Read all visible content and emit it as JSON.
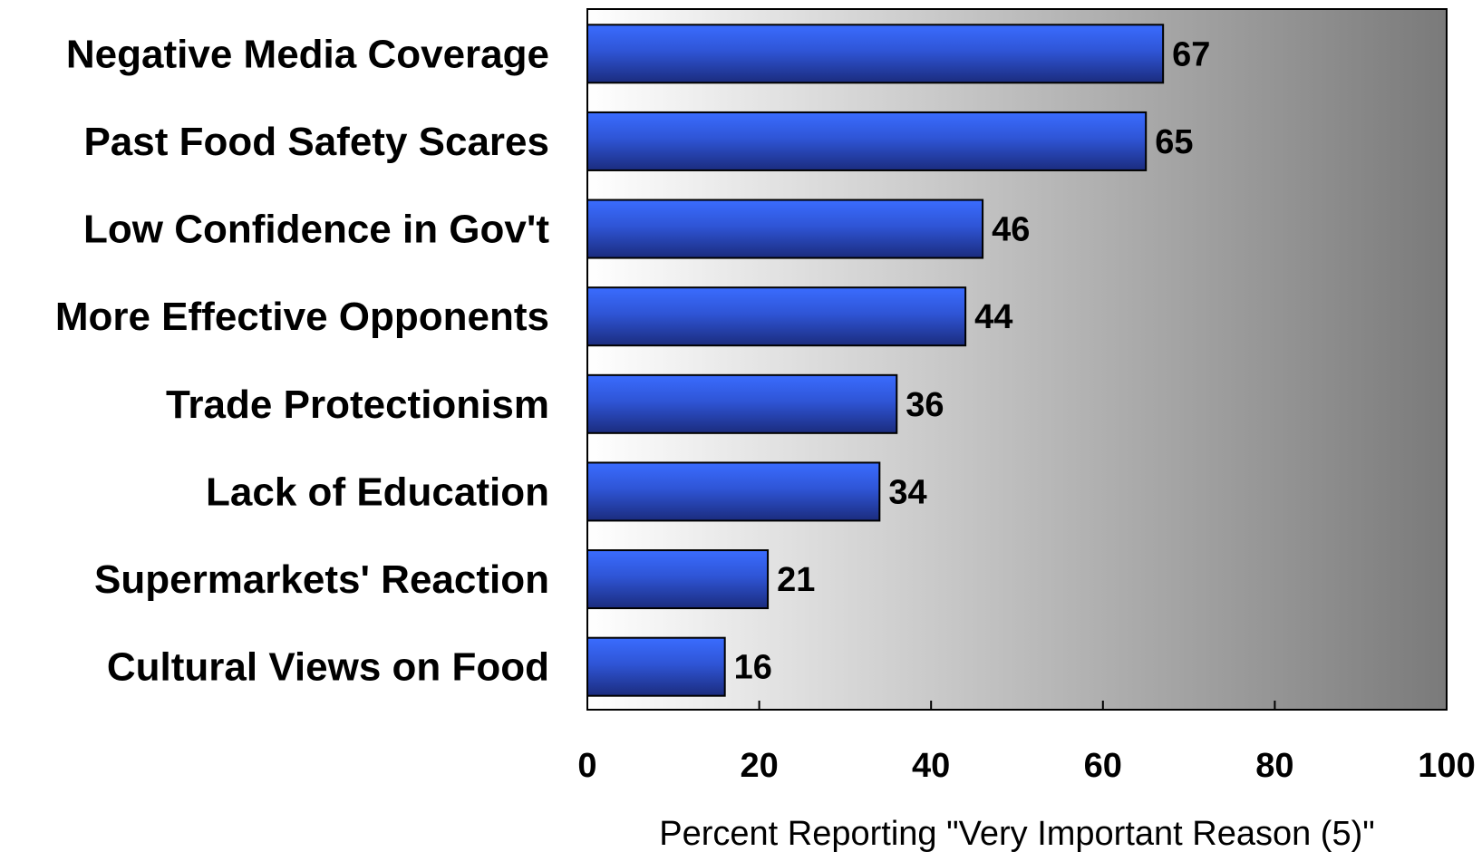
{
  "chart_data": {
    "type": "bar",
    "orientation": "horizontal",
    "categories": [
      "Negative Media Coverage",
      "Past Food Safety Scares",
      "Low Confidence in Gov't",
      "More Effective Opponents",
      "Trade Protectionism",
      "Lack of Education",
      "Supermarkets' Reaction",
      "Cultural Views on Food"
    ],
    "values": [
      67,
      65,
      46,
      44,
      36,
      34,
      21,
      16
    ],
    "xlabel": "Percent Reporting \"Very Important Reason (5)\"",
    "ylabel": "",
    "title": "",
    "xlim": [
      0,
      100
    ],
    "xticks": [
      0,
      20,
      40,
      60,
      80,
      100
    ],
    "tick_labels": [
      "0",
      "20",
      "40",
      "60",
      "80",
      "100"
    ],
    "grid": false,
    "data_labels": true,
    "colors": {
      "bar_top": "#3a6cff",
      "bar_bottom": "#1b2c7e",
      "bar_outline": "#000000",
      "background_left": "#ffffff",
      "background_right": "#7a7a7a"
    }
  }
}
